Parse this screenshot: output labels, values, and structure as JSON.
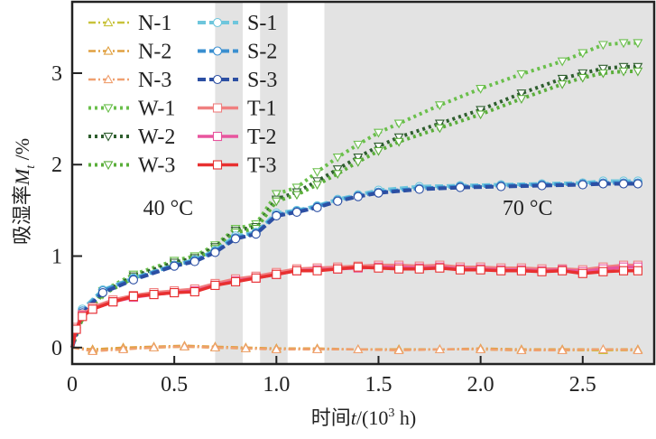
{
  "chart_data": {
    "type": "line",
    "title": "",
    "xlabel_prefix": "时间",
    "xlabel_var": "t",
    "xlabel_suffix": "/(10",
    "xlabel_sup": "3",
    "xlabel_unit": " h)",
    "ylabel_prefix": "吸湿率",
    "ylabel_var": "M",
    "ylabel_sub": "t",
    "ylabel_suffix": " /%",
    "xlim": [
      0,
      2.85
    ],
    "ylim": [
      -0.18,
      3.78
    ],
    "xticks": [
      0,
      0.5,
      1.0,
      1.5,
      2.0,
      2.5
    ],
    "xtick_labels": [
      "0",
      "0.5",
      "1.0",
      "1.5",
      "2.0",
      "2.5"
    ],
    "yticks": [
      0,
      1,
      2,
      3
    ],
    "ytick_labels": [
      "0",
      "1",
      "2",
      "3"
    ],
    "shaded_regions": [
      [
        0.7,
        0.835
      ],
      [
        0.92,
        1.055
      ],
      [
        1.235,
        2.85
      ]
    ],
    "annotations": [
      {
        "text": "40 °C",
        "x": 0.47,
        "y": 1.45
      },
      {
        "text": "70 °C",
        "x": 2.23,
        "y": 1.45
      }
    ],
    "legend_position": "top-left",
    "series": [
      {
        "name": "N-1",
        "color": "#c8c23a",
        "marker": "triangle-up",
        "dash": "dashdot",
        "x": [
          0,
          0.1,
          0.25,
          0.4,
          0.55,
          0.7,
          0.85,
          1.0,
          1.2,
          1.4,
          1.6,
          1.8,
          2.0,
          2.2,
          2.4,
          2.6,
          2.77
        ],
        "y": [
          0,
          -0.03,
          -0.01,
          0.0,
          0.01,
          0.0,
          -0.01,
          -0.01,
          -0.02,
          -0.02,
          -0.02,
          -0.02,
          -0.02,
          -0.03,
          -0.03,
          -0.03,
          -0.03
        ]
      },
      {
        "name": "N-2",
        "color": "#e0a040",
        "marker": "triangle-up",
        "dash": "dashdot",
        "x": [
          0,
          0.1,
          0.25,
          0.4,
          0.55,
          0.7,
          0.85,
          1.0,
          1.2,
          1.4,
          1.6,
          1.8,
          2.0,
          2.2,
          2.4,
          2.6,
          2.77
        ],
        "y": [
          0,
          -0.02,
          0.0,
          0.01,
          0.02,
          0.01,
          0.0,
          -0.01,
          -0.01,
          -0.02,
          -0.02,
          -0.02,
          -0.01,
          -0.02,
          -0.02,
          -0.02,
          -0.02
        ]
      },
      {
        "name": "N-3",
        "color": "#f0a070",
        "marker": "triangle-up",
        "dash": "dashdot",
        "x": [
          0,
          0.1,
          0.25,
          0.4,
          0.55,
          0.7,
          0.85,
          1.0,
          1.2,
          1.4,
          1.6,
          1.8,
          2.0,
          2.2,
          2.4,
          2.6,
          2.77
        ],
        "y": [
          0,
          -0.04,
          -0.02,
          0.0,
          0.01,
          0.0,
          -0.01,
          -0.02,
          -0.02,
          -0.02,
          -0.03,
          -0.02,
          -0.02,
          -0.03,
          -0.03,
          -0.02,
          -0.03
        ]
      },
      {
        "name": "W-1",
        "color": "#6abf4b",
        "marker": "triangle-down",
        "dash": "dotted",
        "x": [
          0,
          0.05,
          0.15,
          0.3,
          0.5,
          0.6,
          0.7,
          0.8,
          0.9,
          1.0,
          1.1,
          1.2,
          1.3,
          1.4,
          1.5,
          1.6,
          1.8,
          2.0,
          2.2,
          2.4,
          2.5,
          2.6,
          2.7,
          2.77
        ],
        "y": [
          0,
          0.35,
          0.62,
          0.8,
          0.95,
          1.0,
          1.12,
          1.3,
          1.35,
          1.68,
          1.75,
          1.92,
          2.08,
          2.22,
          2.35,
          2.45,
          2.65,
          2.83,
          2.99,
          3.13,
          3.22,
          3.31,
          3.33,
          3.33
        ]
      },
      {
        "name": "W-2",
        "color": "#2e5e2e",
        "marker": "triangle-down",
        "dash": "dotted",
        "x": [
          0,
          0.05,
          0.15,
          0.3,
          0.5,
          0.6,
          0.7,
          0.8,
          0.9,
          1.0,
          1.1,
          1.2,
          1.3,
          1.4,
          1.5,
          1.6,
          1.8,
          2.0,
          2.2,
          2.4,
          2.5,
          2.6,
          2.7,
          2.77
        ],
        "y": [
          0,
          0.33,
          0.6,
          0.78,
          0.93,
          0.98,
          1.1,
          1.28,
          1.32,
          1.62,
          1.7,
          1.82,
          1.95,
          2.08,
          2.2,
          2.3,
          2.45,
          2.6,
          2.78,
          2.94,
          3.0,
          3.05,
          3.07,
          3.07
        ]
      },
      {
        "name": "W-3",
        "color": "#5aae3a",
        "marker": "triangle-down",
        "dash": "dotted",
        "x": [
          0,
          0.05,
          0.15,
          0.3,
          0.5,
          0.6,
          0.7,
          0.8,
          0.9,
          1.0,
          1.1,
          1.2,
          1.3,
          1.4,
          1.5,
          1.6,
          1.8,
          2.0,
          2.2,
          2.4,
          2.5,
          2.6,
          2.7,
          2.77
        ],
        "y": [
          0,
          0.32,
          0.58,
          0.76,
          0.9,
          0.96,
          1.08,
          1.26,
          1.3,
          1.6,
          1.67,
          1.78,
          1.9,
          2.03,
          2.15,
          2.25,
          2.4,
          2.55,
          2.72,
          2.88,
          2.95,
          3.0,
          3.02,
          3.02
        ]
      },
      {
        "name": "S-1",
        "color": "#6ec6dc",
        "marker": "circle",
        "dash": "dashed",
        "x": [
          0,
          0.05,
          0.15,
          0.3,
          0.5,
          0.6,
          0.7,
          0.8,
          0.9,
          1.0,
          1.1,
          1.2,
          1.3,
          1.4,
          1.5,
          1.7,
          1.9,
          2.1,
          2.3,
          2.5,
          2.6,
          2.7,
          2.77
        ],
        "y": [
          0,
          0.42,
          0.63,
          0.76,
          0.9,
          0.96,
          1.06,
          1.22,
          1.26,
          1.47,
          1.5,
          1.55,
          1.62,
          1.67,
          1.72,
          1.76,
          1.77,
          1.78,
          1.79,
          1.8,
          1.82,
          1.82,
          1.82
        ]
      },
      {
        "name": "S-2",
        "color": "#3a8fd0",
        "marker": "circle",
        "dash": "dashed",
        "x": [
          0,
          0.05,
          0.15,
          0.3,
          0.5,
          0.6,
          0.7,
          0.8,
          0.9,
          1.0,
          1.1,
          1.2,
          1.3,
          1.4,
          1.5,
          1.7,
          1.9,
          2.1,
          2.3,
          2.5,
          2.6,
          2.7,
          2.77
        ],
        "y": [
          0,
          0.4,
          0.62,
          0.75,
          0.9,
          0.95,
          1.05,
          1.2,
          1.25,
          1.45,
          1.49,
          1.54,
          1.61,
          1.66,
          1.7,
          1.74,
          1.76,
          1.77,
          1.78,
          1.79,
          1.8,
          1.8,
          1.8
        ]
      },
      {
        "name": "S-3",
        "color": "#2c4fa3",
        "marker": "circle",
        "dash": "dashed",
        "x": [
          0,
          0.05,
          0.15,
          0.3,
          0.5,
          0.6,
          0.7,
          0.8,
          0.9,
          1.0,
          1.1,
          1.2,
          1.3,
          1.4,
          1.5,
          1.7,
          1.9,
          2.1,
          2.3,
          2.5,
          2.6,
          2.7,
          2.77
        ],
        "y": [
          0,
          0.38,
          0.6,
          0.74,
          0.89,
          0.94,
          1.04,
          1.19,
          1.24,
          1.44,
          1.48,
          1.53,
          1.6,
          1.65,
          1.69,
          1.73,
          1.75,
          1.76,
          1.77,
          1.78,
          1.79,
          1.79,
          1.79
        ]
      },
      {
        "name": "T-1",
        "color": "#f08080",
        "marker": "square",
        "dash": "solid",
        "x": [
          0,
          0.02,
          0.05,
          0.1,
          0.2,
          0.3,
          0.4,
          0.5,
          0.6,
          0.7,
          0.8,
          0.9,
          1.0,
          1.1,
          1.2,
          1.3,
          1.4,
          1.5,
          1.6,
          1.7,
          1.8,
          1.9,
          2.0,
          2.1,
          2.2,
          2.3,
          2.4,
          2.5,
          2.6,
          2.7,
          2.77
        ],
        "y": [
          0,
          0.22,
          0.36,
          0.44,
          0.52,
          0.57,
          0.6,
          0.62,
          0.64,
          0.7,
          0.75,
          0.78,
          0.82,
          0.86,
          0.87,
          0.88,
          0.89,
          0.9,
          0.9,
          0.89,
          0.9,
          0.88,
          0.88,
          0.87,
          0.87,
          0.86,
          0.86,
          0.85,
          0.88,
          0.9,
          0.9
        ]
      },
      {
        "name": "T-2",
        "color": "#e8559e",
        "marker": "square",
        "dash": "solid",
        "x": [
          0,
          0.02,
          0.05,
          0.1,
          0.2,
          0.3,
          0.4,
          0.5,
          0.6,
          0.7,
          0.8,
          0.9,
          1.0,
          1.1,
          1.2,
          1.3,
          1.4,
          1.5,
          1.6,
          1.7,
          1.8,
          1.9,
          2.0,
          2.1,
          2.2,
          2.3,
          2.4,
          2.5,
          2.6,
          2.7,
          2.77
        ],
        "y": [
          0,
          0.2,
          0.35,
          0.42,
          0.5,
          0.55,
          0.58,
          0.6,
          0.62,
          0.68,
          0.73,
          0.76,
          0.8,
          0.84,
          0.85,
          0.86,
          0.87,
          0.88,
          0.88,
          0.87,
          0.88,
          0.86,
          0.86,
          0.85,
          0.85,
          0.84,
          0.85,
          0.83,
          0.86,
          0.88,
          0.88
        ]
      },
      {
        "name": "T-3",
        "color": "#e83030",
        "marker": "square",
        "dash": "solid",
        "x": [
          0,
          0.02,
          0.05,
          0.1,
          0.2,
          0.3,
          0.4,
          0.5,
          0.6,
          0.7,
          0.8,
          0.9,
          1.0,
          1.1,
          1.2,
          1.3,
          1.4,
          1.5,
          1.6,
          1.7,
          1.8,
          1.9,
          2.0,
          2.1,
          2.2,
          2.3,
          2.4,
          2.5,
          2.6,
          2.7,
          2.77
        ],
        "y": [
          0,
          0.2,
          0.34,
          0.42,
          0.5,
          0.56,
          0.58,
          0.6,
          0.61,
          0.68,
          0.72,
          0.76,
          0.8,
          0.84,
          0.84,
          0.86,
          0.88,
          0.87,
          0.86,
          0.86,
          0.87,
          0.85,
          0.85,
          0.84,
          0.84,
          0.83,
          0.84,
          0.81,
          0.83,
          0.84,
          0.84
        ]
      }
    ]
  }
}
